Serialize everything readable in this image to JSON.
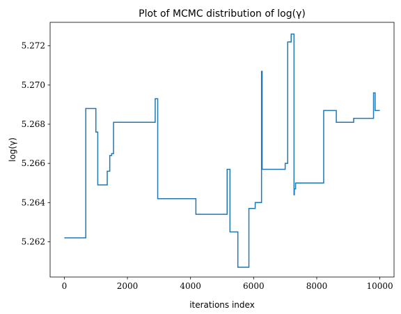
{
  "chart_data": {
    "type": "line",
    "title": "Plot of MCMC distribution of log(γ)",
    "xlabel": "iterations index",
    "ylabel": "log(γ)",
    "xlim": [
      -450,
      10450
    ],
    "ylim": [
      5.2602,
      5.2732
    ],
    "xticks": [
      0,
      2000,
      4000,
      6000,
      8000,
      10000
    ],
    "xtick_labels": [
      "0",
      "2000",
      "4000",
      "6000",
      "8000",
      "10000"
    ],
    "yticks": [
      5.262,
      5.264,
      5.266,
      5.268,
      5.27,
      5.272
    ],
    "ytick_labels": [
      "5.262",
      "5.264",
      "5.266",
      "5.268",
      "5.270",
      "5.272"
    ],
    "grid": false,
    "line_color": "#1f77b4",
    "drawstyle": "steps-post",
    "series": [
      {
        "x": [
          0,
          680,
          1000,
          1060,
          1360,
          1440,
          1500,
          1560,
          2880,
          2960,
          4170,
          5160,
          5250,
          5500,
          5850,
          6050,
          6250,
          6270,
          7000,
          7080,
          7190,
          7280,
          7290,
          7330,
          8220,
          8620,
          9170,
          9800,
          9850,
          10000
        ],
        "y": [
          5.2622,
          5.2688,
          5.2676,
          5.2649,
          5.2656,
          5.2664,
          5.2665,
          5.2681,
          5.2693,
          5.2642,
          5.2634,
          5.2657,
          5.2625,
          5.2607,
          5.2637,
          5.264,
          5.2707,
          5.2657,
          5.266,
          5.2722,
          5.2726,
          5.2644,
          5.2647,
          5.265,
          5.2687,
          5.2681,
          5.2683,
          5.2696,
          5.2687,
          5.2687
        ]
      }
    ]
  }
}
